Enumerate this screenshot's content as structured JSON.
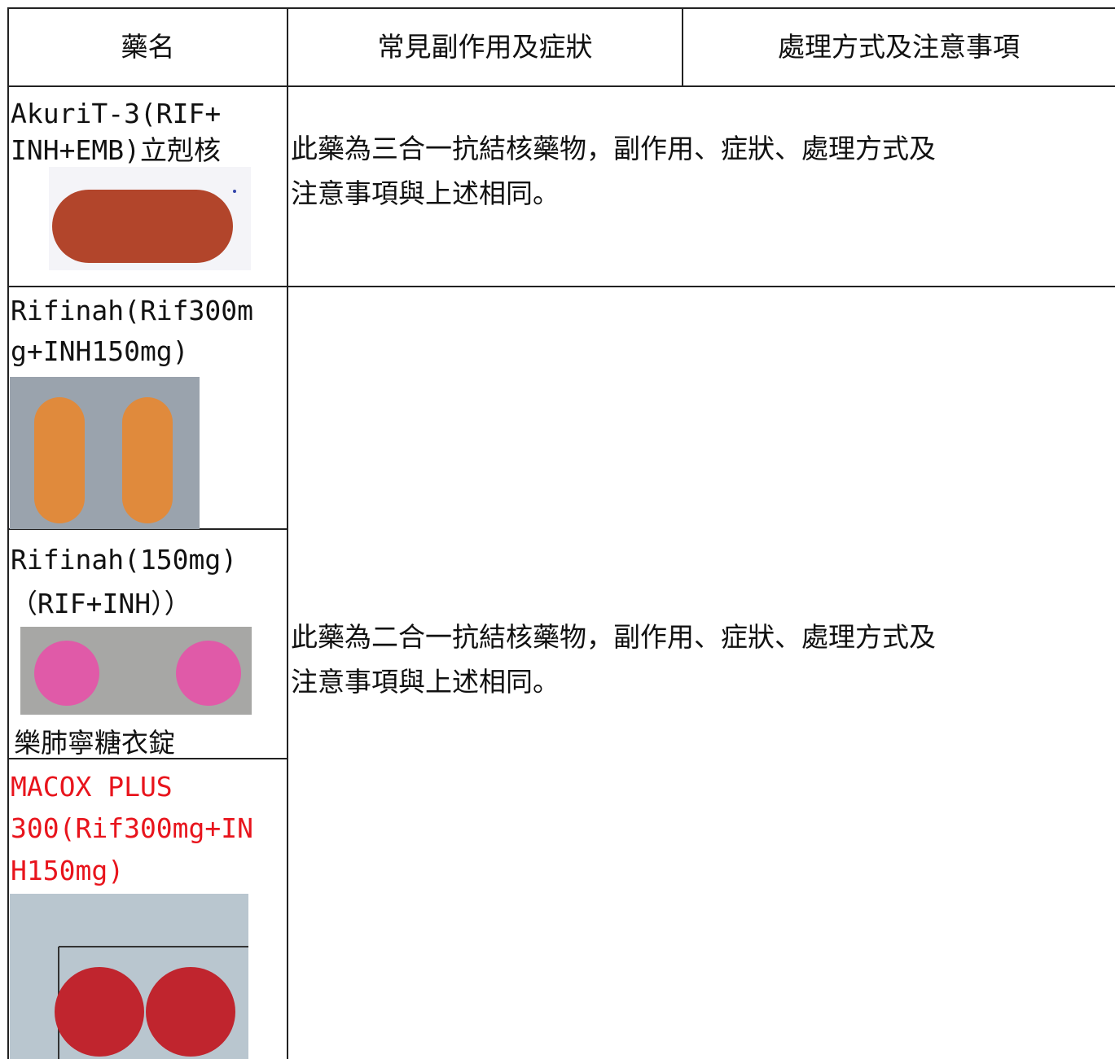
{
  "table": {
    "header": [
      "藥名",
      "常見副作用及症狀",
      "處理方式及注意事項"
    ],
    "rows": [
      {
        "drugs": [
          {
            "name": [
              "AkuriT-3(RIF+",
              "INH+EMB)立剋核"
            ]
          }
        ],
        "note": [
          "此藥為三合一抗結核藥物，副作用、症狀、處理方式及",
          "注意事項與上述相同。"
        ]
      },
      {
        "drugs": [
          {
            "name": [
              "Rifinah(Rif300m",
              "g+INH150mg)"
            ]
          },
          {
            "name": [
              "Rifinah(150mg)",
              " （RIF+INH））",
              "樂肺寧糖衣錠"
            ]
          },
          {
            "name": [
              "MACOX PLUS",
              "300(Rif300mg+IN",
              "H150mg)"
            ]
          }
        ],
        "note": [
          "此藥為二合一抗結核藥物，副作用、症狀、處理方式及",
          "注意事項與上述相同。"
        ]
      }
    ]
  }
}
